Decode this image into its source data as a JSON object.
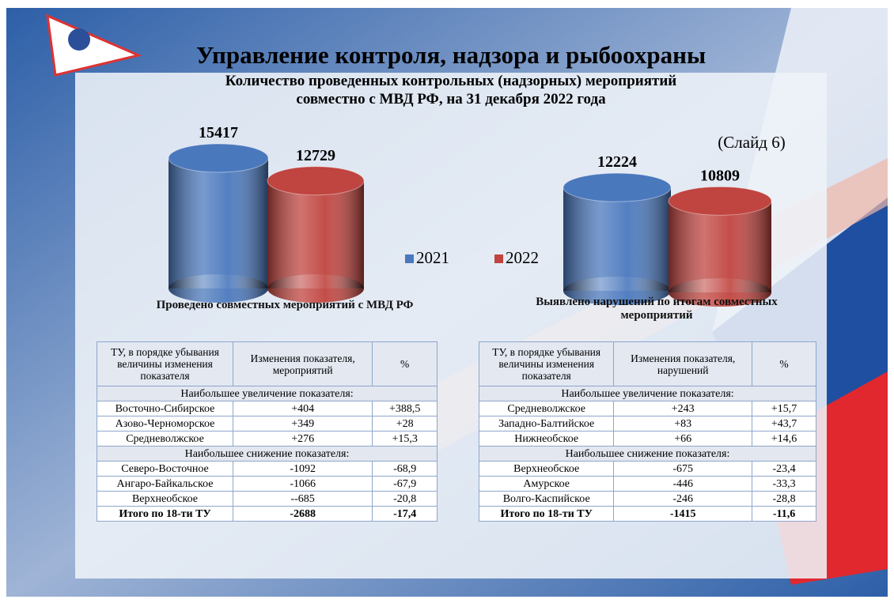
{
  "header": {
    "title": "Управление контроля, надзора и рыбоохраны",
    "subtitle": [
      "Количество проведенных контрольных (надзорных) мероприятий",
      "совместно с МВД РФ,  на 31 декабря 2022 года"
    ],
    "slide": "(Слайд 6)"
  },
  "legend": [
    {
      "name": "2021",
      "color": "#4a78bd"
    },
    {
      "name": "2022",
      "color": "#c0443f"
    }
  ],
  "chart_data": [
    {
      "type": "bar",
      "title": "Проведено совместных  мероприятий с МВД РФ",
      "values": [
        15417,
        12729
      ]
    },
    {
      "type": "bar",
      "title": "Выявлено нарушений по итогам совместных мероприятий",
      "values": [
        12224,
        10809
      ]
    }
  ],
  "tables": [
    {
      "header": [
        "ТУ, в порядке убывания величины изменения показателя",
        "Изменения показателя, мероприятий",
        "%"
      ],
      "groups": [
        {
          "title": "Наибольшее увеличение показателя:",
          "rows": [
            [
              "Восточно-Сибирское",
              "+404",
              "+388,5"
            ],
            [
              "Азово-Черноморское",
              "+349",
              "+28"
            ],
            [
              "Средневолжское",
              "+276",
              "+15,3"
            ]
          ]
        },
        {
          "title": "Наибольшее снижение показателя:",
          "rows": [
            [
              "Северо-Восточное",
              "-1092",
              "-68,9"
            ],
            [
              "Ангаро-Байкальское",
              "-1066",
              "-67,9"
            ],
            [
              "Верхнеобское",
              "--685",
              "-20,8"
            ]
          ]
        }
      ],
      "total": [
        "Итого по 18-ти ТУ",
        "-2688",
        "-17,4"
      ]
    },
    {
      "header": [
        "ТУ, в порядке убывания величины изменения показателя",
        "Изменения показателя, нарушений",
        "%"
      ],
      "groups": [
        {
          "title": "Наибольшее увеличение показателя:",
          "rows": [
            [
              "Средневолжское",
              "+243",
              "+15,7"
            ],
            [
              "Западно-Балтийское",
              "+83",
              "+43,7"
            ],
            [
              "Нижнеобское",
              "+66",
              "+14,6"
            ]
          ]
        },
        {
          "title": "Наибольшее снижение показателя:",
          "rows": [
            [
              "Верхнеобское",
              "-675",
              "-23,4"
            ],
            [
              "Амурское",
              "-446",
              "-33,3"
            ],
            [
              "Волго-Каспийское",
              "-246",
              "-28,8"
            ]
          ]
        }
      ],
      "total": [
        "Итого по 18-ти ТУ",
        "-1415",
        "-11,6"
      ]
    }
  ]
}
